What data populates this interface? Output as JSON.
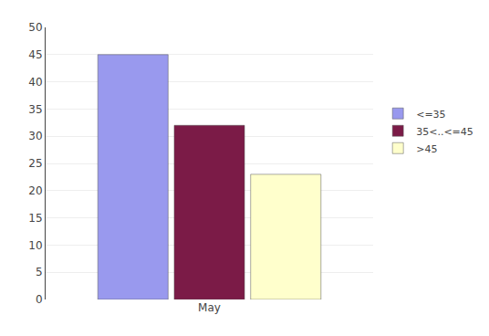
{
  "chart_data": {
    "type": "bar",
    "categories": [
      "May"
    ],
    "series": [
      {
        "name": "<=35",
        "color": "#9999EE",
        "values": [
          45
        ]
      },
      {
        "name": "35<..<=45",
        "color": "#7B1B47",
        "values": [
          32
        ]
      },
      {
        "name": ">45",
        "color": "#FFFFCC",
        "values": [
          23
        ]
      }
    ],
    "ylim": [
      0,
      50
    ],
    "yticks": [
      0,
      5,
      10,
      15,
      20,
      25,
      30,
      35,
      40,
      45,
      50
    ],
    "grid": true,
    "legend": "right"
  }
}
